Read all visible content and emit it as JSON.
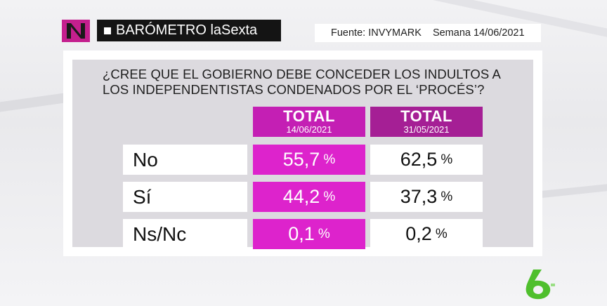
{
  "header": {
    "title": "BARÓMETRO laSexta",
    "source": "Fuente: INVYMARK",
    "week": "Semana 14/06/2021"
  },
  "chart_data": {
    "type": "table",
    "question": "¿CREE QUE EL GOBIERNO DEBE CONCEDER LOS INDULTOS A LOS INDEPENDENTISTAS CONDENADOS POR EL ‘PROCÉS’?",
    "columns": [
      {
        "label": "TOTAL",
        "date": "14/06/2021"
      },
      {
        "label": "TOTAL",
        "date": "31/05/2021"
      }
    ],
    "rows": [
      {
        "label": "No",
        "values": [
          "55,7",
          "62,5"
        ]
      },
      {
        "label": "Sí",
        "values": [
          "44,2",
          "37,3"
        ]
      },
      {
        "label": "Ns/Nc",
        "values": [
          "0,1",
          "0,2"
        ]
      }
    ],
    "unit": "%",
    "colors": {
      "current": "#dd23cc",
      "current_header": "#c41fb4",
      "previous_header": "#a51f95"
    }
  },
  "icons": {
    "channel_logo": "nius-logo-icon",
    "network_logo": "lasexta-6-logo-icon"
  }
}
